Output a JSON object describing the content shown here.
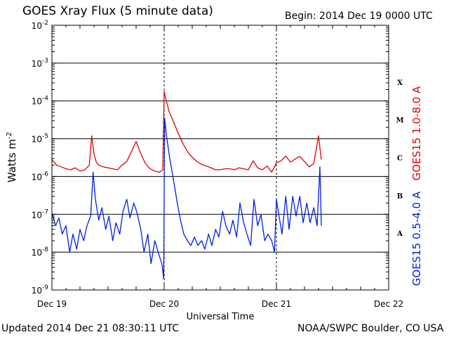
{
  "header": {
    "title": "GOES Xray Flux (5 minute data)",
    "begin": "Begin:  2014 Dec 19 0000 UTC"
  },
  "footer": {
    "updated": "Updated 2014 Dec 21 08:30:11 UTC",
    "credit": "NOAA/SWPC Boulder, CO USA"
  },
  "chart_data": {
    "type": "line",
    "title": "GOES Xray Flux (5 minute data)",
    "xlabel": "Universal Time",
    "ylabel": "Watts m-2",
    "yscale": "log",
    "ylim": [
      1e-09,
      0.01
    ],
    "xlim": [
      0,
      72
    ],
    "x_unit": "hours since 2014 Dec 19 0000 UTC",
    "x_ticks": [
      {
        "x": 0,
        "label": "Dec 19"
      },
      {
        "x": 24,
        "label": "Dec 20"
      },
      {
        "x": 48,
        "label": "Dec 21"
      },
      {
        "x": 72,
        "label": "Dec 22"
      }
    ],
    "y_ticks": [
      {
        "exp": -9,
        "label": "10",
        "sup": "-9"
      },
      {
        "exp": -8,
        "label": "10",
        "sup": "-8"
      },
      {
        "exp": -7,
        "label": "10",
        "sup": "-7"
      },
      {
        "exp": -6,
        "label": "10",
        "sup": "-6"
      },
      {
        "exp": -5,
        "label": "10",
        "sup": "-5"
      },
      {
        "exp": -4,
        "label": "10",
        "sup": "-4"
      },
      {
        "exp": -3,
        "label": "10",
        "sup": "-3"
      },
      {
        "exp": -2,
        "label": "10",
        "sup": "-2"
      }
    ],
    "flare_classes": [
      {
        "label": "A",
        "from": 1e-08,
        "to": 1e-07
      },
      {
        "label": "B",
        "from": 1e-07,
        "to": 1e-06
      },
      {
        "label": "C",
        "from": 1e-06,
        "to": 1e-05
      },
      {
        "label": "M",
        "from": 1e-05,
        "to": 0.0001
      },
      {
        "label": "X",
        "from": 0.0001,
        "to": 0.001
      }
    ],
    "grid": "horizontal at each decade",
    "legend": "right side, vertical",
    "series": [
      {
        "name": "GOES15 1.0-8.0 A",
        "color": "#e00000",
        "x": [
          0,
          1,
          2,
          3,
          4,
          5,
          6,
          7,
          8,
          8.5,
          9,
          9.5,
          10,
          11,
          12,
          13,
          14,
          15,
          16,
          17,
          18,
          19,
          20,
          21,
          22,
          23,
          23.7,
          24,
          24.3,
          25,
          26,
          27,
          28,
          29,
          30,
          31,
          32,
          33,
          34,
          35,
          36,
          37,
          38,
          39,
          40,
          41,
          42,
          43,
          44,
          45,
          46,
          47,
          48,
          49,
          50,
          51,
          52,
          53,
          54,
          55,
          56,
          57,
          57.6
        ],
        "y": [
          2.8e-06,
          2e-06,
          1.8e-06,
          1.6e-06,
          1.5e-06,
          1.7e-06,
          1.4e-06,
          1.5e-06,
          2e-06,
          1.2e-05,
          4e-06,
          2.4e-06,
          2e-06,
          1.8e-06,
          1.7e-06,
          1.6e-06,
          1.5e-06,
          2e-06,
          2.5e-06,
          4.5e-06,
          8.5e-06,
          4e-06,
          2.2e-06,
          1.6e-06,
          1.4e-06,
          1.3e-06,
          1.5e-06,
          0.00018,
          0.00012,
          5.5e-05,
          2.8e-05,
          1.4e-05,
          7.5e-06,
          4.5e-06,
          3.2e-06,
          2.5e-06,
          2.1e-06,
          1.9e-06,
          1.7e-06,
          1.5e-06,
          1.5e-06,
          1.6e-06,
          1.6e-06,
          1.5e-06,
          1.7e-06,
          1.6e-06,
          1.5e-06,
          2.6e-06,
          1.7e-06,
          1.5e-06,
          1.9e-06,
          1.3e-06,
          2.3e-06,
          2.6e-06,
          3.5e-06,
          2.4e-06,
          2.9e-06,
          3.4e-06,
          2.5e-06,
          1.8e-06,
          2.2e-06,
          1.2e-05,
          2.8e-06
        ]
      },
      {
        "name": "GOES15 0.5-4.0 A",
        "color": "#0020e0",
        "x": [
          0,
          0.8,
          1.5,
          2.2,
          3,
          3.8,
          4.5,
          5.3,
          6,
          6.8,
          7.5,
          8.3,
          8.8,
          9.3,
          10,
          10.7,
          11.5,
          12.2,
          13,
          13.7,
          14.5,
          15.2,
          16,
          16.7,
          17.5,
          18.2,
          19,
          19.7,
          20.5,
          21.2,
          22,
          22.7,
          23.5,
          23.9,
          24.1,
          24.5,
          25.2,
          26,
          26.8,
          27.5,
          28.2,
          29,
          29.7,
          30.5,
          31.2,
          32,
          32.7,
          33.5,
          34.2,
          35,
          35.7,
          36.5,
          37.2,
          38,
          38.7,
          39.5,
          40.2,
          41,
          41.7,
          42.5,
          43.2,
          44,
          44.7,
          45.5,
          46.2,
          47,
          47.6,
          48,
          48.5,
          49.2,
          50,
          50.7,
          51.5,
          52.2,
          53,
          53.7,
          54.5,
          55.2,
          56,
          56.7,
          57.3,
          57.6
        ],
        "y": [
          1.1e-07,
          5e-08,
          8e-08,
          3e-08,
          5e-08,
          1e-08,
          3e-08,
          1.2e-08,
          4e-08,
          2e-08,
          5e-08,
          9e-08,
          1.3e-06,
          2.5e-07,
          7e-08,
          1.5e-07,
          4e-08,
          9e-08,
          2e-08,
          6e-08,
          3e-08,
          1.2e-07,
          2.5e-07,
          8e-08,
          2e-07,
          1.1e-07,
          4e-08,
          1e-08,
          3e-08,
          5e-09,
          2e-08,
          1e-08,
          5e-09,
          2e-09,
          3.5e-05,
          1.2e-05,
          3e-06,
          8e-07,
          2e-07,
          7e-08,
          3e-08,
          2e-08,
          1.5e-08,
          2.5e-08,
          1.5e-08,
          2e-08,
          1.2e-08,
          3e-08,
          1.5e-08,
          4e-08,
          2.5e-08,
          1.2e-07,
          5e-08,
          3e-08,
          7e-08,
          2.5e-08,
          2e-07,
          6e-08,
          3e-08,
          1.5e-08,
          2.5e-07,
          5e-08,
          1e-07,
          2e-08,
          3e-08,
          2e-08,
          1e-08,
          2.5e-07,
          1e-07,
          3e-08,
          3e-07,
          4e-08,
          3e-07,
          9e-08,
          3e-07,
          6e-08,
          2e-07,
          6e-08,
          1.5e-07,
          5e-08,
          1.8e-06,
          5e-08
        ]
      }
    ]
  }
}
